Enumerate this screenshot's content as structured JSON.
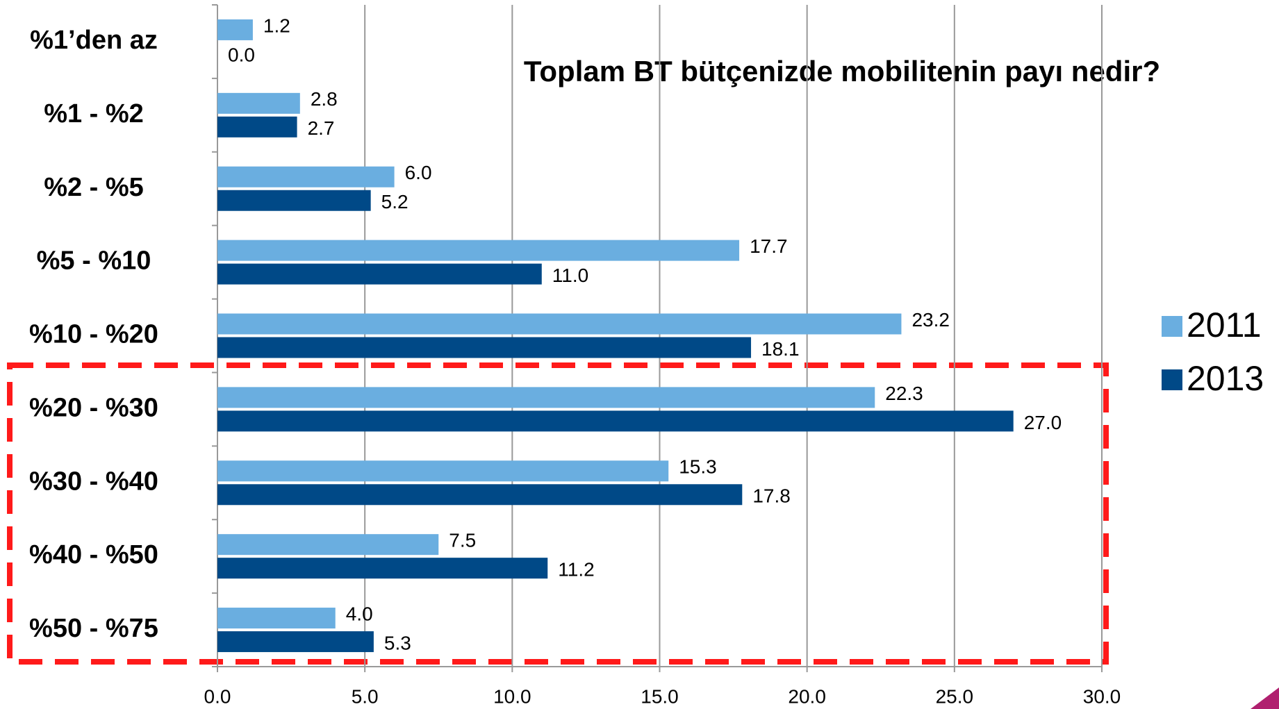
{
  "chart_data": {
    "type": "bar",
    "orientation": "horizontal",
    "title": "Toplam BT bütçenizde mobilitenin payı nedir?",
    "categories": [
      "%1’den az",
      "%1 - %2",
      "%2 - %5",
      "%5 - %10",
      "%10 - %20",
      "%20 - %30",
      "%30 - %40",
      "%40 - %50",
      "%50 - %75"
    ],
    "series": [
      {
        "name": "2011",
        "color": "#6aaee0",
        "values": [
          1.2,
          2.8,
          6.0,
          17.7,
          23.2,
          22.3,
          15.3,
          7.5,
          4.0
        ],
        "value_labels": [
          "1.2",
          "2.8",
          "6.0",
          "17.7",
          "23.2",
          "22.3",
          "15.3",
          "7.5",
          "4.0"
        ]
      },
      {
        "name": "2013",
        "color": "#004987",
        "values": [
          0.0,
          2.7,
          5.2,
          11.0,
          18.1,
          27.0,
          17.8,
          11.2,
          5.3
        ],
        "value_labels": [
          "0.0",
          "2.7",
          "5.2",
          "11.0",
          "18.1",
          "27.0",
          "17.8",
          "11.2",
          "5.3"
        ]
      }
    ],
    "xlim": [
      0,
      30
    ],
    "xticks": [
      {
        "value": 0,
        "label": "0.0"
      },
      {
        "value": 5,
        "label": "5.0"
      },
      {
        "value": 10,
        "label": "10.0"
      },
      {
        "value": 15,
        "label": "15.0"
      },
      {
        "value": 20,
        "label": "20.0"
      },
      {
        "value": 25,
        "label": "25.0"
      },
      {
        "value": 30,
        "label": "30.0"
      }
    ],
    "grid": true,
    "legend": "right"
  }
}
